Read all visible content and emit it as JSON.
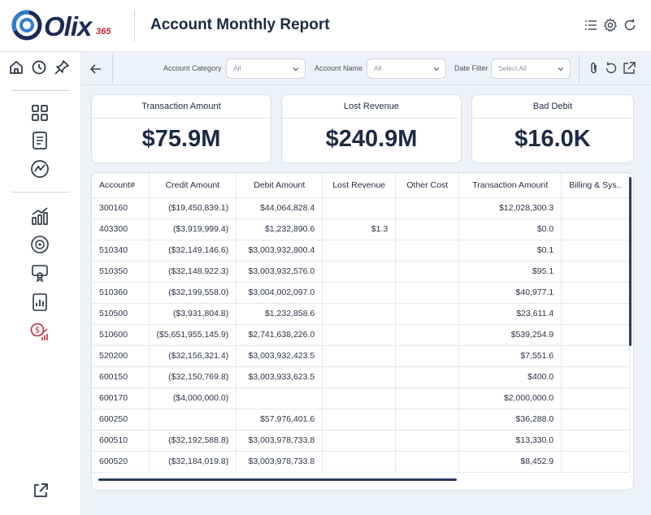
{
  "header": {
    "logo_text": "Olix",
    "logo_number": "365",
    "title": "Account Monthly Report",
    "icons": [
      "list-icon",
      "gear-icon",
      "refresh-icon"
    ]
  },
  "sidebar": {
    "top_icons": [
      "home-icon",
      "clock-icon",
      "pin-icon"
    ],
    "group1": [
      "dashboard-grid-icon",
      "report-document-icon",
      "analytics-icon"
    ],
    "group2": [
      "bar-chart-icon",
      "revenue-cycle-icon",
      "certificate-icon",
      "report-chart-icon",
      "cost-analysis-icon"
    ],
    "bottom_icon": "external-link-icon",
    "active_color": "#c0283a"
  },
  "filters": {
    "account_category": {
      "label": "Account Category",
      "value": "All"
    },
    "account_name": {
      "label": "Account Name",
      "value": "All"
    },
    "date_filter": {
      "label": "Date Filter",
      "value": "Select All"
    }
  },
  "kpis": {
    "transaction_amount": {
      "title": "Transaction Amount",
      "value": "$75.9M"
    },
    "lost_revenue": {
      "title": "Lost Revenue",
      "value": "$240.9M"
    },
    "bad_debit": {
      "title": "Bad Debit",
      "value": "$16.0K"
    }
  },
  "table": {
    "columns": [
      "Account#",
      "Credit Amount",
      "Debit Amount",
      "Lost Revenue",
      "Other Cost",
      "Transaction Amount",
      "Billing & Sys.."
    ],
    "rows": [
      [
        "300160",
        "($19,450,839.1)",
        "$44,064,828.4",
        "",
        "",
        "$12,028,300.3",
        ""
      ],
      [
        "403300",
        "($3,919,999.4)",
        "$1,232,890.6",
        "$1.3",
        "",
        "$0.0",
        ""
      ],
      [
        "510340",
        "($32,149,146.6)",
        "$3,003,932,800.4",
        "",
        "",
        "$0.1",
        ""
      ],
      [
        "510350",
        "($32,148,922.3)",
        "$3,003,932,576.0",
        "",
        "",
        "$95.1",
        ""
      ],
      [
        "510360",
        "($32,199,558.0)",
        "$3,004,002,097.0",
        "",
        "",
        "$40,977.1",
        ""
      ],
      [
        "510500",
        "($3,931,804.8)",
        "$1,232,858.6",
        "",
        "",
        "$23,611.4",
        ""
      ],
      [
        "510600",
        "($5,651,955,145.9)",
        "$2,741,638,226.0",
        "",
        "",
        "$539,254.9",
        ""
      ],
      [
        "520200",
        "($32,156,321.4)",
        "$3,003,932,423.5",
        "",
        "",
        "$7,551.6",
        ""
      ],
      [
        "600150",
        "($32,150,769.8)",
        "$3,003,933,623.5",
        "",
        "",
        "$400.0",
        ""
      ],
      [
        "600170",
        "($4,000,000.0)",
        "",
        "",
        "",
        "$2,000,000.0",
        ""
      ],
      [
        "600250",
        "",
        "$57,976,401.6",
        "",
        "",
        "$36,288.0",
        ""
      ],
      [
        "600510",
        "($32,192,588.8)",
        "$3,003,978,733.8",
        "",
        "",
        "$13,330.0",
        ""
      ],
      [
        "600520",
        "($32,184,019.8)",
        "$3,003,978,733.8",
        "",
        "",
        "$8,452.9",
        ""
      ]
    ]
  }
}
